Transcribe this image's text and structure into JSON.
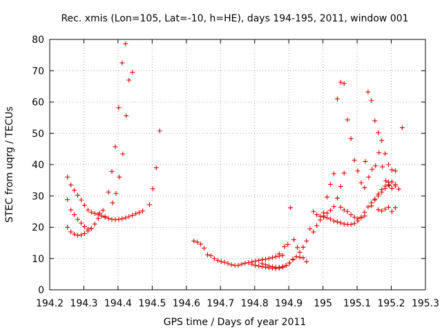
{
  "chart_data": {
    "type": "scatter",
    "title": "Rec. xmis (Lon=105, Lat=-10, h=HE), days 194-195, 2011, window 001",
    "xlabel": "GPS time / Days of year 2011",
    "ylabel": "STEC from uqrg / TECUs",
    "xlim": [
      194.2,
      195.3
    ],
    "ylim": [
      0,
      80
    ],
    "xticks": [
      194.2,
      194.3,
      194.4,
      194.5,
      194.6,
      194.7,
      194.8,
      194.9,
      195,
      195.1,
      195.2,
      195.3
    ],
    "xtick_labels": [
      "194.2",
      "194.3",
      "194.4",
      "194.5",
      "194.6",
      "194.7",
      "194.8",
      "194.9",
      "195",
      "195.1",
      "195.2",
      "195.3"
    ],
    "yticks": [
      0,
      10,
      20,
      30,
      40,
      50,
      60,
      70,
      80
    ],
    "ytick_labels": [
      "0",
      "10",
      "20",
      "30",
      "40",
      "50",
      "60",
      "70",
      "80"
    ],
    "grid": true,
    "marker": "+",
    "color": "#e00000",
    "points": [
      [
        194.252,
        36.0
      ],
      [
        194.262,
        33.5
      ],
      [
        194.272,
        31.8
      ],
      [
        194.282,
        30.2
      ],
      [
        194.292,
        28.7
      ],
      [
        194.302,
        27.0
      ],
      [
        194.312,
        25.5
      ],
      [
        194.322,
        24.8
      ],
      [
        194.332,
        24.4
      ],
      [
        194.342,
        24.0
      ],
      [
        194.352,
        23.6
      ],
      [
        194.362,
        23.2
      ],
      [
        194.372,
        22.8
      ],
      [
        194.382,
        22.5
      ],
      [
        194.392,
        22.4
      ],
      [
        194.402,
        22.5
      ],
      [
        194.412,
        22.7
      ],
      [
        194.422,
        23.0
      ],
      [
        194.432,
        23.4
      ],
      [
        194.442,
        23.8
      ],
      [
        194.452,
        24.3
      ],
      [
        194.462,
        24.7
      ],
      [
        194.472,
        25.2
      ],
      [
        194.252,
        28.8
      ],
      [
        194.262,
        25.5
      ],
      [
        194.272,
        24.0
      ],
      [
        194.282,
        22.5
      ],
      [
        194.292,
        21.3
      ],
      [
        194.302,
        20.2
      ],
      [
        194.312,
        19.4
      ],
      [
        194.322,
        19.6
      ],
      [
        194.332,
        21.0
      ],
      [
        194.342,
        22.8
      ],
      [
        194.252,
        20.0
      ],
      [
        194.262,
        18.5
      ],
      [
        194.272,
        17.8
      ],
      [
        194.282,
        17.4
      ],
      [
        194.292,
        17.5
      ],
      [
        194.302,
        18.0
      ],
      [
        194.312,
        18.8
      ],
      [
        194.322,
        19.6
      ],
      [
        194.372,
        31.2
      ],
      [
        194.382,
        37.8
      ],
      [
        194.392,
        45.7
      ],
      [
        194.402,
        58.2
      ],
      [
        194.412,
        72.5
      ],
      [
        194.422,
        78.6
      ],
      [
        194.432,
        67.0
      ],
      [
        194.442,
        69.5
      ],
      [
        194.384,
        27.8
      ],
      [
        194.394,
        30.8
      ],
      [
        194.404,
        36.0
      ],
      [
        194.414,
        43.4
      ],
      [
        194.424,
        55.6
      ],
      [
        194.346,
        24.5
      ],
      [
        194.356,
        25.4
      ],
      [
        194.362,
        23.4
      ],
      [
        194.492,
        27.2
      ],
      [
        194.502,
        32.3
      ],
      [
        194.512,
        39.0
      ],
      [
        194.522,
        50.8
      ],
      [
        194.622,
        15.6
      ],
      [
        194.632,
        15.2
      ],
      [
        194.642,
        14.6
      ],
      [
        194.652,
        13.3
      ],
      [
        194.662,
        11.2
      ],
      [
        194.672,
        10.9
      ],
      [
        194.682,
        10.0
      ],
      [
        194.692,
        9.4
      ],
      [
        194.702,
        9.0
      ],
      [
        194.712,
        8.8
      ],
      [
        194.722,
        8.4
      ],
      [
        194.732,
        8.0
      ],
      [
        194.742,
        7.8
      ],
      [
        194.752,
        7.8
      ],
      [
        194.762,
        8.2
      ],
      [
        194.772,
        8.5
      ],
      [
        194.782,
        8.7
      ],
      [
        194.792,
        8.9
      ],
      [
        194.802,
        9.2
      ],
      [
        194.812,
        9.4
      ],
      [
        194.822,
        9.6
      ],
      [
        194.832,
        9.8
      ],
      [
        194.842,
        10.0
      ],
      [
        194.852,
        10.3
      ],
      [
        194.862,
        10.6
      ],
      [
        194.872,
        10.8
      ],
      [
        194.882,
        11.0
      ],
      [
        194.792,
        8.2
      ],
      [
        194.802,
        7.8
      ],
      [
        194.812,
        7.6
      ],
      [
        194.822,
        7.4
      ],
      [
        194.832,
        7.2
      ],
      [
        194.842,
        7.0
      ],
      [
        194.852,
        6.9
      ],
      [
        194.862,
        6.8
      ],
      [
        194.872,
        6.9
      ],
      [
        194.882,
        7.2
      ],
      [
        194.892,
        7.8
      ],
      [
        194.902,
        8.6
      ],
      [
        194.912,
        9.6
      ],
      [
        194.922,
        10.6
      ],
      [
        194.932,
        12.0
      ],
      [
        194.942,
        13.6
      ],
      [
        194.952,
        15.6
      ],
      [
        194.962,
        19.5
      ],
      [
        194.822,
        8.4
      ],
      [
        194.832,
        8.0
      ],
      [
        194.842,
        7.6
      ],
      [
        194.852,
        7.4
      ],
      [
        194.862,
        7.2
      ],
      [
        194.872,
        7.2
      ],
      [
        194.882,
        7.4
      ],
      [
        194.892,
        7.8
      ],
      [
        194.902,
        8.6
      ],
      [
        194.912,
        9.8
      ],
      [
        194.872,
        11.5
      ],
      [
        194.887,
        13.8
      ],
      [
        194.897,
        14.5
      ],
      [
        194.905,
        26.2
      ],
      [
        194.915,
        16.0
      ],
      [
        194.925,
        13.5
      ],
      [
        194.932,
        10.4
      ],
      [
        194.942,
        10.2
      ],
      [
        194.952,
        9.0
      ],
      [
        194.972,
        18.5
      ],
      [
        194.982,
        20.5
      ],
      [
        194.992,
        22.3
      ],
      [
        195.002,
        23.6
      ],
      [
        195.012,
        24.5
      ],
      [
        195.022,
        25.4
      ],
      [
        195.032,
        26.6
      ],
      [
        195.042,
        29.3
      ],
      [
        195.052,
        33.0
      ],
      [
        195.062,
        37.3
      ],
      [
        195.072,
        54.3
      ],
      [
        195.082,
        48.3
      ],
      [
        195.092,
        41.4
      ],
      [
        195.102,
        38.0
      ],
      [
        195.112,
        34.2
      ],
      [
        195.122,
        32.6
      ],
      [
        195.002,
        24.6
      ],
      [
        195.012,
        29.6
      ],
      [
        195.022,
        33.7
      ],
      [
        195.032,
        37.1
      ],
      [
        195.042,
        61.0
      ],
      [
        195.052,
        66.3
      ],
      [
        195.062,
        65.9
      ],
      [
        195.132,
        63.2
      ],
      [
        195.142,
        60.5
      ],
      [
        195.152,
        54.0
      ],
      [
        195.162,
        50.2
      ],
      [
        195.172,
        47.7
      ],
      [
        195.182,
        43.5
      ],
      [
        195.192,
        40.0
      ],
      [
        195.202,
        38.3
      ],
      [
        195.212,
        33.7
      ],
      [
        195.222,
        32.2
      ],
      [
        195.232,
        51.8
      ],
      [
        194.972,
        25.0
      ],
      [
        194.982,
        24.0
      ],
      [
        194.992,
        23.5
      ],
      [
        195.002,
        23.2
      ],
      [
        195.012,
        23.0
      ],
      [
        195.022,
        22.6
      ],
      [
        195.032,
        22.0
      ],
      [
        195.042,
        21.7
      ],
      [
        195.052,
        21.4
      ],
      [
        195.062,
        21.0
      ],
      [
        195.072,
        20.9
      ],
      [
        195.082,
        20.9
      ],
      [
        195.092,
        21.2
      ],
      [
        195.102,
        22.0
      ],
      [
        195.112,
        23.2
      ],
      [
        195.122,
        24.8
      ],
      [
        195.132,
        26.5
      ],
      [
        195.142,
        27.8
      ],
      [
        195.152,
        29.0
      ],
      [
        195.162,
        30.0
      ],
      [
        195.172,
        31.2
      ],
      [
        195.182,
        32.4
      ],
      [
        195.192,
        33.6
      ],
      [
        195.202,
        34.5
      ],
      [
        195.212,
        38.0
      ],
      [
        195.052,
        26.4
      ],
      [
        195.062,
        25.5
      ],
      [
        195.072,
        25.0
      ],
      [
        195.082,
        24.0
      ],
      [
        195.092,
        23.2
      ],
      [
        195.102,
        22.7
      ],
      [
        195.112,
        23.0
      ],
      [
        195.122,
        23.6
      ],
      [
        195.142,
        26.8
      ],
      [
        195.152,
        28.7
      ],
      [
        195.162,
        30.6
      ],
      [
        195.172,
        32.0
      ],
      [
        195.182,
        33.1
      ],
      [
        195.192,
        34.4
      ],
      [
        195.202,
        32.4
      ],
      [
        195.212,
        33.2
      ],
      [
        195.162,
        25.6
      ],
      [
        195.172,
        25.2
      ],
      [
        195.182,
        25.8
      ],
      [
        195.192,
        26.4
      ],
      [
        195.202,
        25.0
      ],
      [
        195.212,
        26.2
      ],
      [
        195.124,
        41.0
      ],
      [
        195.134,
        36.0
      ],
      [
        195.144,
        38.5
      ],
      [
        195.154,
        39.6
      ],
      [
        195.164,
        43.8
      ],
      [
        195.174,
        39.3
      ],
      [
        195.184,
        34.8
      ],
      [
        195.194,
        33.3
      ]
    ]
  }
}
